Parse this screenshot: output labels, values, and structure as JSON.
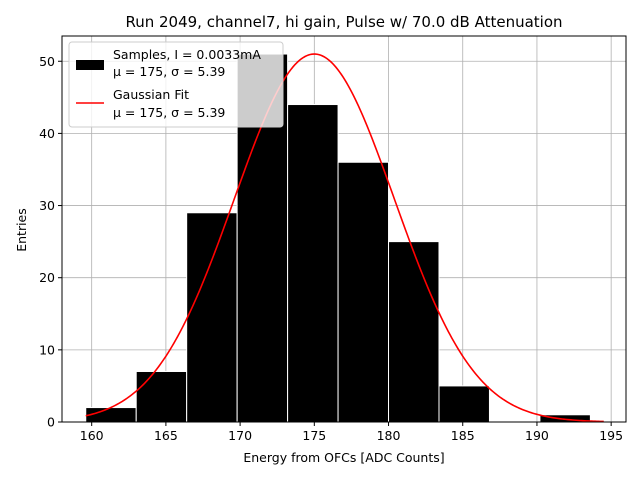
{
  "chart_data": {
    "type": "bar",
    "title": "Run 2049, channel7, hi gain, Pulse w/ 70.0 dB Attenuation",
    "xlabel": "Energy from OFCs [ADC Counts]",
    "ylabel": "Entries",
    "xlim": [
      158.0,
      196.0
    ],
    "ylim": [
      0,
      53.5
    ],
    "xticks": [
      160,
      165,
      170,
      175,
      180,
      185,
      190,
      195
    ],
    "yticks": [
      0,
      10,
      20,
      30,
      40,
      50
    ],
    "grid": true,
    "legend_position": "top-left",
    "bins": [
      {
        "x0": 159.6,
        "x1": 163.0,
        "count": 2
      },
      {
        "x0": 163.0,
        "x1": 166.4,
        "count": 7
      },
      {
        "x0": 166.4,
        "x1": 169.8,
        "count": 29
      },
      {
        "x0": 169.8,
        "x1": 173.2,
        "count": 51
      },
      {
        "x0": 173.2,
        "x1": 176.6,
        "count": 44
      },
      {
        "x0": 176.6,
        "x1": 180.0,
        "count": 36
      },
      {
        "x0": 180.0,
        "x1": 183.4,
        "count": 25
      },
      {
        "x0": 183.4,
        "x1": 186.8,
        "count": 5
      },
      {
        "x0": 186.8,
        "x1": 190.2,
        "count": 0
      },
      {
        "x0": 190.2,
        "x1": 193.6,
        "count": 1
      }
    ],
    "series": [
      {
        "name": "Samples, I = 0.0033mA",
        "stats": "μ = 175, σ = 5.39",
        "kind": "histogram",
        "color": "#000000"
      },
      {
        "name": "Gaussian Fit",
        "stats": "μ = 175, σ = 5.39",
        "kind": "line",
        "color": "#ff0000",
        "mu": 175.0,
        "sigma": 5.39,
        "amplitude": 51.0,
        "x_range": [
          159.6,
          194.5
        ]
      }
    ]
  }
}
